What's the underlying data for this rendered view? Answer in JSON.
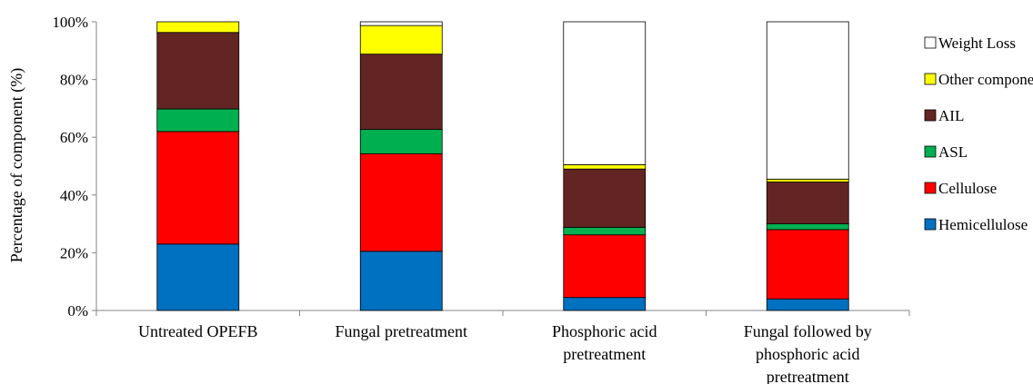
{
  "chart_data": {
    "type": "bar",
    "stacked": true,
    "ylabel": "Percentage of component (%)",
    "ylim": [
      0,
      100
    ],
    "yticks": [
      0,
      20,
      40,
      60,
      80,
      100
    ],
    "ytick_labels": [
      "0%",
      "20%",
      "40%",
      "60%",
      "80%",
      "100%"
    ],
    "grid": false,
    "legend_position": "right",
    "categories": [
      [
        "Untreated OPEFB"
      ],
      [
        "Fungal pretreatment"
      ],
      [
        "Phosphoric acid",
        "pretreatment"
      ],
      [
        "Fungal followed by",
        "phosphoric acid",
        "pretreatment"
      ]
    ],
    "series": [
      {
        "name": "Hemicellulose",
        "color": "#0070C0",
        "values": [
          23,
          20.5,
          4.5,
          4
        ]
      },
      {
        "name": "Cellulose",
        "color": "#FF0000",
        "values": [
          39,
          33.8,
          21.7,
          24
        ]
      },
      {
        "name": "ASL",
        "color": "#00B050",
        "values": [
          7.8,
          8.4,
          2.6,
          2
        ]
      },
      {
        "name": "AIL",
        "color": "#632523",
        "values": [
          26.5,
          26.1,
          20.2,
          14.5
        ]
      },
      {
        "name": "Other components",
        "color": "#FFFF00",
        "values": [
          3.7,
          9.9,
          1.5,
          1
        ]
      },
      {
        "name": "Weight Loss",
        "color": "#FFFFFF",
        "values": [
          0,
          1.3,
          49.5,
          54.5
        ]
      }
    ]
  }
}
